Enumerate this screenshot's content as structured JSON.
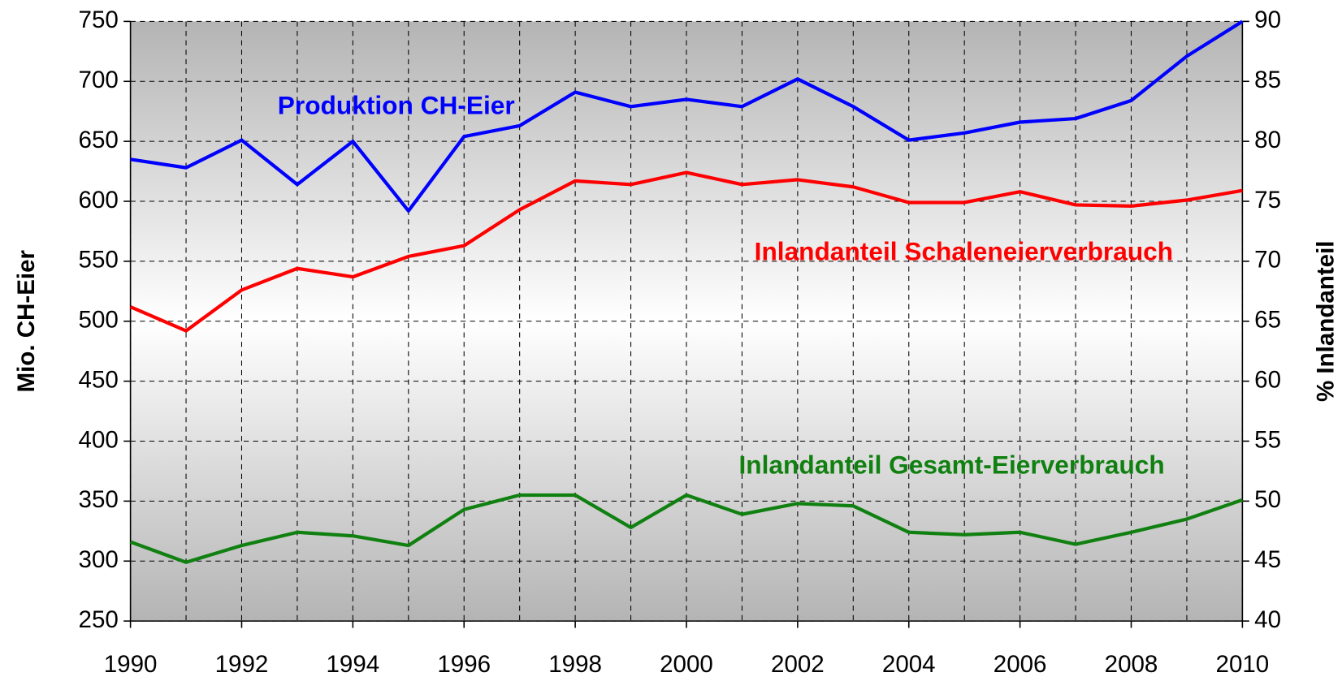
{
  "chart_data": {
    "type": "line",
    "x": [
      1990,
      1991,
      1992,
      1993,
      1994,
      1995,
      1996,
      1997,
      1998,
      1999,
      2000,
      2001,
      2002,
      2003,
      2004,
      2005,
      2006,
      2007,
      2008,
      2009,
      2010
    ],
    "xlim": [
      1990,
      2010
    ],
    "xticks": [
      1990,
      1992,
      1994,
      1996,
      1998,
      2000,
      2002,
      2004,
      2006,
      2008,
      2010
    ],
    "ylim": [
      250,
      750
    ],
    "yticks": [
      250,
      300,
      350,
      400,
      450,
      500,
      550,
      600,
      650,
      700,
      750
    ],
    "y2lim": [
      40,
      90
    ],
    "y2ticks": [
      40,
      45,
      50,
      55,
      60,
      65,
      70,
      75,
      80,
      85,
      90
    ],
    "ylabel": "Mio. CH-Eier",
    "y2label": "% Inlandanteil",
    "grid": true,
    "series": [
      {
        "name": "Produktion CH-Eier",
        "color": "#0000ff",
        "values": [
          635,
          628,
          651,
          614,
          650,
          592,
          654,
          663,
          691,
          679,
          685,
          679,
          702,
          679,
          651,
          657,
          666,
          669,
          684,
          721,
          750
        ]
      },
      {
        "name": "Inlandanteil Schaleneierverbrauch",
        "color": "#ff0000",
        "axis": "y2",
        "values": [
          66.2,
          64.2,
          67.6,
          69.4,
          68.7,
          70.4,
          71.3,
          74.3,
          76.7,
          76.4,
          77.4,
          76.4,
          76.8,
          76.2,
          74.9,
          74.9,
          75.8,
          74.7,
          74.6,
          75.1,
          75.9
        ]
      },
      {
        "name": "Inlandanteil Gesamt-Eierverbrauch",
        "color": "#108010",
        "axis": "y2",
        "values": [
          46.6,
          44.9,
          46.3,
          47.4,
          47.1,
          46.3,
          49.3,
          50.5,
          50.5,
          47.8,
          50.5,
          48.9,
          49.8,
          49.6,
          47.4,
          47.2,
          47.4,
          46.4,
          47.4,
          48.5,
          50.1
        ]
      }
    ]
  }
}
